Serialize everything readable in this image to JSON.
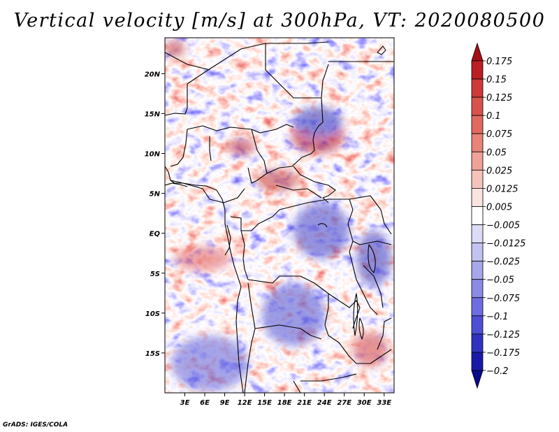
{
  "title": "Vertical velocity [m/s] at 300hPa, VT: 2020080500",
  "footer": "GrADS: IGES/COLA",
  "variable": "Vertical velocity",
  "units": "m/s",
  "level": "300hPa",
  "valid_time": "2020080500",
  "map": {
    "lon_range": [
      0,
      34.5
    ],
    "lat_range": [
      -20,
      24.5
    ],
    "lat_ticks": [
      {
        "value": 20,
        "label": "20N"
      },
      {
        "value": 15,
        "label": "15N"
      },
      {
        "value": 10,
        "label": "10N"
      },
      {
        "value": 5,
        "label": "5N"
      },
      {
        "value": 0,
        "label": "EQ"
      },
      {
        "value": -5,
        "label": "5S"
      },
      {
        "value": -10,
        "label": "10S"
      },
      {
        "value": -15,
        "label": "15S"
      }
    ],
    "lon_ticks": [
      {
        "value": 3,
        "label": "3E"
      },
      {
        "value": 6,
        "label": "6E"
      },
      {
        "value": 9,
        "label": "9E"
      },
      {
        "value": 12,
        "label": "12E"
      },
      {
        "value": 15,
        "label": "15E"
      },
      {
        "value": 18,
        "label": "18E"
      },
      {
        "value": 21,
        "label": "21E"
      },
      {
        "value": 24,
        "label": "24E"
      },
      {
        "value": 27,
        "label": "27E"
      },
      {
        "value": 30,
        "label": "30E"
      },
      {
        "value": 33,
        "label": "33E"
      }
    ]
  },
  "colorbar": {
    "labels": [
      "0.175",
      "0.15",
      "0.125",
      "0.1",
      "0.075",
      "0.05",
      "0.025",
      "0.0125",
      "0.005",
      "−0.005",
      "−0.0125",
      "−0.025",
      "−0.05",
      "−0.075",
      "−0.1",
      "−0.125",
      "−0.175",
      "−0.2"
    ],
    "colors": [
      "#a50f15",
      "#bb1e24",
      "#cc3a3a",
      "#d9534d",
      "#e06a60",
      "#e88479",
      "#f0a198",
      "#f6c3bc",
      "#fbe3df",
      "#ffffff",
      "#dcdcf7",
      "#c3c3f2",
      "#a7a7ec",
      "#8b8be6",
      "#6e6ee0",
      "#4f4fd4",
      "#3232c0",
      "#1a1aa8",
      "#0a0a8c"
    ]
  }
}
